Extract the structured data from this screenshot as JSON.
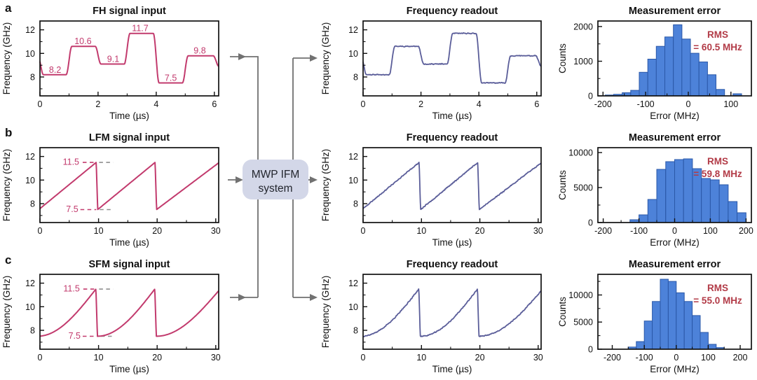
{
  "figure": {
    "panel_labels": [
      "a",
      "b",
      "c"
    ],
    "center_box": {
      "line1": "MWP IFM",
      "line2": "system",
      "fill": "#d3d7e8",
      "text_color": "#23262e",
      "arrow_color": "#717171"
    },
    "colors": {
      "input_curve": "#c23a6d",
      "readout_curve": "#5a5d99",
      "hist_fill": "#4d82d9",
      "hist_edge": "#2b58a8",
      "rms_text": "#b23b47",
      "axis": "#111111",
      "dash_gray": "#8f8f8f"
    }
  },
  "chart_data": [
    {
      "id": "a-input",
      "panel": "a",
      "col": 0,
      "type": "line",
      "series": "input",
      "title": "FH signal input",
      "xlabel": "Time (µs)",
      "ylabel": "Frequency (GHz)",
      "xlim": [
        0,
        6.15
      ],
      "ylim": [
        6.4,
        12.75
      ],
      "xticks": [
        0,
        2,
        4,
        6
      ],
      "xminor": [
        1,
        3,
        5
      ],
      "yticks": [
        8,
        10,
        12
      ],
      "yminor": [
        7,
        9,
        11
      ],
      "signal": {
        "kind": "hop",
        "boundaries": [
          0.02,
          1,
          2,
          3,
          4,
          5,
          6.06
        ],
        "levels": [
          9.9,
          8.2,
          10.6,
          9.1,
          11.7,
          7.5,
          9.8,
          8.9
        ],
        "trans": 0.2,
        "hop_values_ghz": [
          8.2,
          10.6,
          9.1,
          11.7,
          7.5,
          9.8
        ],
        "dwell_us": 1.0
      },
      "value_labels": [
        {
          "text": "8.2",
          "t": 0.52,
          "f": 8.56
        },
        {
          "text": "10.6",
          "t": 1.48,
          "f": 10.98
        },
        {
          "text": "9.1",
          "t": 2.52,
          "f": 9.46
        },
        {
          "text": "11.7",
          "t": 3.45,
          "f": 12.08
        },
        {
          "text": "7.5",
          "t": 4.5,
          "f": 7.88
        },
        {
          "text": "9.8",
          "t": 5.5,
          "f": 10.18
        }
      ],
      "dashes": []
    },
    {
      "id": "a-readout",
      "panel": "a",
      "col": 1,
      "type": "line",
      "series": "readout",
      "title": "Frequency readout",
      "xlabel": "Time (µs)",
      "ylabel": "Frequency (GHz)",
      "xlim": [
        0,
        6.15
      ],
      "ylim": [
        6.4,
        12.75
      ],
      "xticks": [
        0,
        2,
        4,
        6
      ],
      "xminor": [
        1,
        3,
        5
      ],
      "yticks": [
        8,
        10,
        12
      ],
      "yminor": [
        7,
        9,
        11
      ],
      "signal": {
        "kind": "hop",
        "boundaries": [
          0.02,
          1,
          2,
          3,
          4,
          5,
          6.06
        ],
        "levels": [
          9.9,
          8.2,
          10.6,
          9.1,
          11.7,
          7.5,
          9.8,
          8.9
        ],
        "trans": 0.2
      },
      "noise": 0.05,
      "seed": 11,
      "value_labels": [],
      "dashes": []
    },
    {
      "id": "a-hist",
      "panel": "a",
      "col": 2,
      "type": "bar",
      "title": "Measurement error",
      "xlabel": "Error (MHz)",
      "ylabel": "Counts",
      "xlim": [
        -212,
        148
      ],
      "ylim": [
        0,
        2160
      ],
      "xticks": [
        -200,
        -100,
        0,
        100
      ],
      "xminor": [
        -150,
        -50,
        50
      ],
      "yticks": [
        0,
        1000,
        2000
      ],
      "yminor": [
        500,
        1500
      ],
      "bins": {
        "start": -195,
        "width": 20,
        "values": [
          25,
          45,
          90,
          160,
          680,
          1060,
          1430,
          1700,
          2050,
          1640,
          1230,
          980,
          610,
          185,
          0,
          60
        ]
      },
      "rms_lines": [
        "RMS",
        "= 60.5 MHz"
      ]
    },
    {
      "id": "b-input",
      "panel": "b",
      "col": 0,
      "type": "line",
      "series": "input",
      "title": "LFM signal input",
      "xlabel": "Time (µs)",
      "ylabel": "Frequency (GHz)",
      "xlim": [
        0,
        30.5
      ],
      "ylim": [
        6.4,
        12.75
      ],
      "xticks": [
        0,
        10,
        20,
        30
      ],
      "xminor": [
        5,
        15,
        25
      ],
      "yticks": [
        8,
        10,
        12
      ],
      "yminor": [
        7,
        9,
        11
      ],
      "signal": {
        "kind": "saw",
        "fmin": 7.5,
        "fmax": 11.5,
        "rises": [
          [
            -0.2,
            9.6
          ],
          [
            9.85,
            19.65
          ],
          [
            19.9,
            30.6
          ]
        ],
        "sweep_period_us": 10,
        "sweep_range_ghz": [
          7.5,
          11.5
        ]
      },
      "value_labels": [
        {
          "text": "11.5",
          "t": 5.3,
          "f": 11.5
        },
        {
          "text": "7.5",
          "t": 5.5,
          "f": 7.5
        }
      ],
      "dashes": [
        {
          "f": 11.5,
          "t1": 7.3,
          "t2": 9.4,
          "color": "pink"
        },
        {
          "f": 11.5,
          "t1": 10.1,
          "t2": 12.5,
          "color": "gray"
        },
        {
          "f": 7.5,
          "t1": 6.9,
          "t2": 9.6,
          "color": "pink"
        },
        {
          "f": 7.5,
          "t1": 10.2,
          "t2": 12.3,
          "color": "gray"
        }
      ]
    },
    {
      "id": "b-readout",
      "panel": "b",
      "col": 1,
      "type": "line",
      "series": "readout",
      "title": "Frequency readout",
      "xlabel": "Time (µs)",
      "ylabel": "Frequency (GHz)",
      "xlim": [
        0,
        30.5
      ],
      "ylim": [
        6.4,
        12.75
      ],
      "xticks": [
        0,
        10,
        20,
        30
      ],
      "xminor": [
        5,
        15,
        25
      ],
      "yticks": [
        8,
        10,
        12
      ],
      "yminor": [
        7,
        9,
        11
      ],
      "signal": {
        "kind": "saw",
        "fmin": 7.5,
        "fmax": 11.5,
        "rises": [
          [
            -0.2,
            9.6
          ],
          [
            9.85,
            19.65
          ],
          [
            19.9,
            30.6
          ]
        ]
      },
      "noise": 0.06,
      "seed": 23,
      "value_labels": [],
      "dashes": []
    },
    {
      "id": "b-hist",
      "panel": "b",
      "col": 2,
      "type": "bar",
      "title": "Measurement error",
      "xlabel": "Error (MHz)",
      "ylabel": "Counts",
      "xlim": [
        -215,
        215
      ],
      "ylim": [
        0,
        10700
      ],
      "xticks": [
        -200,
        -100,
        0,
        100,
        200
      ],
      "xminor": [
        -150,
        -50,
        50,
        150
      ],
      "yticks": [
        0,
        5000,
        10000
      ],
      "yminor": [
        2500,
        7500
      ],
      "bins": {
        "start": -125,
        "width": 25,
        "values": [
          400,
          1100,
          3300,
          7600,
          8700,
          9000,
          9100,
          7700,
          6300,
          6100,
          5400,
          3000,
          1400
        ]
      },
      "rms_lines": [
        "RMS",
        "= 59.8 MHz"
      ]
    },
    {
      "id": "c-input",
      "panel": "c",
      "col": 0,
      "type": "line",
      "series": "input",
      "title": "SFM signal input",
      "xlabel": "Time (µs)",
      "ylabel": "Frequency (GHz)",
      "xlim": [
        0,
        30.5
      ],
      "ylim": [
        6.4,
        12.75
      ],
      "xticks": [
        0,
        10,
        20,
        30
      ],
      "xminor": [
        5,
        15,
        25
      ],
      "yticks": [
        8,
        10,
        12
      ],
      "yminor": [
        7,
        9,
        11
      ],
      "signal": {
        "kind": "sfm",
        "fmin": 7.5,
        "fmax": 11.5,
        "rises": [
          [
            -0.4,
            9.55
          ],
          [
            9.8,
            19.6
          ],
          [
            19.85,
            30.75
          ]
        ],
        "sweep_period_us": 10,
        "sweep_range_ghz": [
          7.5,
          11.5
        ]
      },
      "value_labels": [
        {
          "text": "11.5",
          "t": 5.4,
          "f": 11.5
        },
        {
          "text": "7.5",
          "t": 5.9,
          "f": 7.5
        }
      ],
      "dashes": [
        {
          "f": 11.5,
          "t1": 7.4,
          "t2": 9.3,
          "color": "pink"
        },
        {
          "f": 11.5,
          "t1": 10.1,
          "t2": 12.5,
          "color": "gray"
        },
        {
          "f": 7.5,
          "t1": 7.3,
          "t2": 9.9,
          "color": "pink"
        },
        {
          "f": 7.5,
          "t1": 10.4,
          "t2": 12.8,
          "color": "gray"
        }
      ]
    },
    {
      "id": "c-readout",
      "panel": "c",
      "col": 1,
      "type": "line",
      "series": "readout",
      "title": "Frequency readout",
      "xlabel": "Time (µs)",
      "ylabel": "Frequency (GHz)",
      "xlim": [
        0,
        30.5
      ],
      "ylim": [
        6.4,
        12.75
      ],
      "xticks": [
        0,
        10,
        20,
        30
      ],
      "xminor": [
        5,
        15,
        25
      ],
      "yticks": [
        8,
        10,
        12
      ],
      "yminor": [
        7,
        9,
        11
      ],
      "signal": {
        "kind": "sfm",
        "fmin": 7.5,
        "fmax": 11.5,
        "rises": [
          [
            -0.4,
            9.55
          ],
          [
            9.8,
            19.6
          ],
          [
            19.85,
            30.75
          ]
        ]
      },
      "noise": 0.06,
      "seed": 37,
      "value_labels": [],
      "dashes": []
    },
    {
      "id": "c-hist",
      "panel": "c",
      "col": 2,
      "type": "bar",
      "title": "Measurement error",
      "xlabel": "Error (MHz)",
      "ylabel": "Counts",
      "xlim": [
        -245,
        235
      ],
      "ylim": [
        0,
        13800
      ],
      "xticks": [
        -200,
        -100,
        0,
        100,
        200
      ],
      "xminor": [
        -150,
        -50,
        50,
        150
      ],
      "yticks": [
        0,
        5000,
        10000
      ],
      "yminor": [
        2500,
        7500,
        12500
      ],
      "bins": {
        "start": -150,
        "width": 25,
        "values": [
          400,
          1400,
          5200,
          8800,
          12900,
          12500,
          10400,
          8800,
          6200,
          3100,
          900,
          300
        ]
      },
      "rms_lines": [
        "RMS",
        "= 55.0 MHz"
      ]
    }
  ]
}
